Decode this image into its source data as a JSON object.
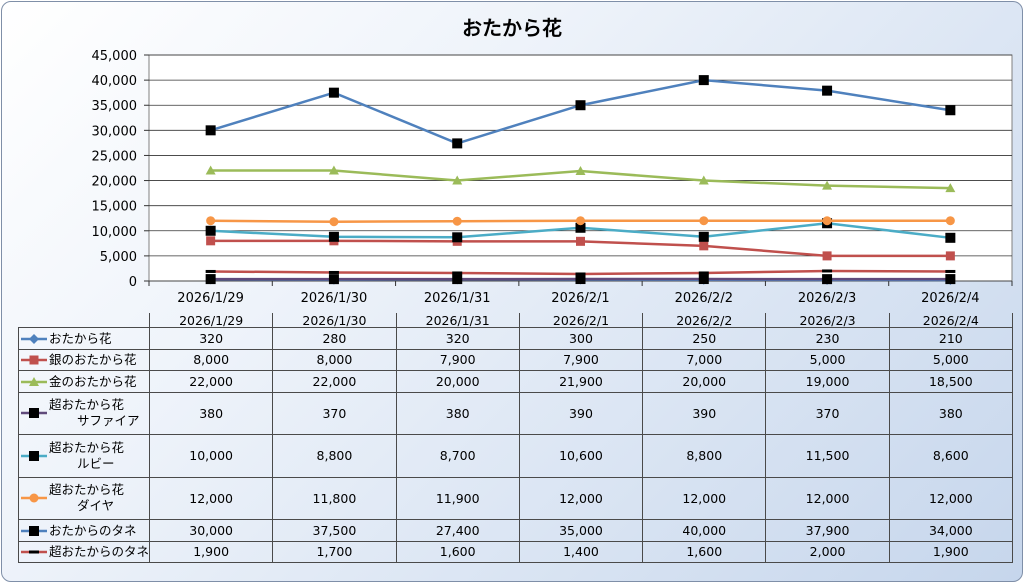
{
  "chart_data": {
    "type": "line",
    "title": "おたから花",
    "categories": [
      "2026/1/29",
      "2026/1/30",
      "2026/1/31",
      "2026/2/1",
      "2026/2/2",
      "2026/2/3",
      "2026/2/4"
    ],
    "ylim": [
      0,
      45000
    ],
    "ytick_step": 5000,
    "yticks": [
      "0",
      "5,000",
      "10,000",
      "15,000",
      "20,000",
      "25,000",
      "30,000",
      "35,000",
      "40,000",
      "45,000"
    ],
    "grid": true,
    "legend": "data-table",
    "series": [
      {
        "name": "おたから花",
        "label_lines": [
          "おたから花"
        ],
        "color": "#4f81bd",
        "marker": "diamond",
        "values": [
          320,
          280,
          320,
          300,
          250,
          230,
          210
        ],
        "display": [
          "320",
          "280",
          "320",
          "300",
          "250",
          "230",
          "210"
        ]
      },
      {
        "name": "銀のおたから花",
        "label_lines": [
          "銀のおたから花"
        ],
        "color": "#c0504d",
        "marker": "square",
        "values": [
          8000,
          8000,
          7900,
          7900,
          7000,
          5000,
          5000
        ],
        "display": [
          "8,000",
          "8,000",
          "7,900",
          "7,900",
          "7,000",
          "5,000",
          "5,000"
        ]
      },
      {
        "name": "金のおたから花",
        "label_lines": [
          "金のおたから花"
        ],
        "color": "#9bbb59",
        "marker": "triangle",
        "values": [
          22000,
          22000,
          20000,
          21900,
          20000,
          19000,
          18500
        ],
        "display": [
          "22,000",
          "22,000",
          "20,000",
          "21,900",
          "20,000",
          "19,000",
          "18,500"
        ]
      },
      {
        "name": "超おたから花サファイア",
        "label_lines": [
          "超おたから花",
          "サファイア"
        ],
        "color": "#604a7b",
        "marker": "square-black",
        "values": [
          380,
          370,
          380,
          390,
          390,
          370,
          380
        ],
        "display": [
          "380",
          "370",
          "380",
          "390",
          "390",
          "370",
          "380"
        ]
      },
      {
        "name": "超おたから花ルビー",
        "label_lines": [
          "超おたから花",
          "ルビー"
        ],
        "color": "#4bacc6",
        "marker": "square-black",
        "values": [
          10000,
          8800,
          8700,
          10600,
          8800,
          11500,
          8600
        ],
        "display": [
          "10,000",
          "8,800",
          "8,700",
          "10,600",
          "8,800",
          "11,500",
          "8,600"
        ]
      },
      {
        "name": "超おたから花ダイヤ",
        "label_lines": [
          "超おたから花",
          "ダイヤ"
        ],
        "color": "#f79646",
        "marker": "circle",
        "values": [
          12000,
          11800,
          11900,
          12000,
          12000,
          12000,
          12000
        ],
        "display": [
          "12,000",
          "11,800",
          "11,900",
          "12,000",
          "12,000",
          "12,000",
          "12,000"
        ]
      },
      {
        "name": "おたからのタネ",
        "label_lines": [
          "おたからのタネ"
        ],
        "color": "#4f81bd",
        "marker": "square-black",
        "values": [
          30000,
          37500,
          27400,
          35000,
          40000,
          37900,
          34000
        ],
        "display": [
          "30,000",
          "37,500",
          "27,400",
          "35,000",
          "40,000",
          "37,900",
          "34,000"
        ]
      },
      {
        "name": "超おたからのタネ",
        "label_lines": [
          "超おたからのタネ"
        ],
        "color": "#c0504d",
        "marker": "dash-black",
        "values": [
          1900,
          1700,
          1600,
          1400,
          1600,
          2000,
          1900
        ],
        "display": [
          "1,900",
          "1,700",
          "1,600",
          "1,400",
          "1,600",
          "2,000",
          "1,900"
        ]
      }
    ]
  }
}
